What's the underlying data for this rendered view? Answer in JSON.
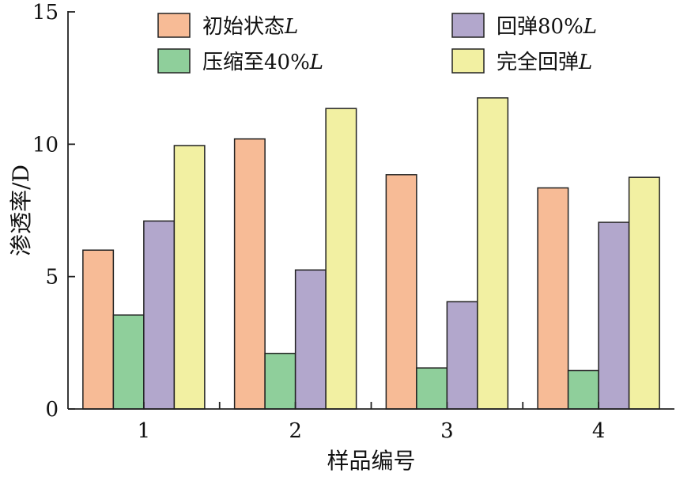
{
  "chart_data": {
    "type": "bar",
    "categories": [
      "1",
      "2",
      "3",
      "4"
    ],
    "series": [
      {
        "name": "初始状态L",
        "label_main": "初始状态",
        "label_italic": "L",
        "color": "#f7bb96",
        "values": [
          6.0,
          10.2,
          8.85,
          8.35
        ]
      },
      {
        "name": "压缩至40%L",
        "label_main": "压缩至40%",
        "label_italic": "L",
        "color": "#8fcf9b",
        "values": [
          3.55,
          2.1,
          1.55,
          1.45
        ]
      },
      {
        "name": "回弹80%L",
        "label_main": "回弹80%",
        "label_italic": "L",
        "color": "#b2a7cc",
        "values": [
          7.1,
          5.25,
          4.05,
          7.05
        ]
      },
      {
        "name": "完全回弹L",
        "label_main": "完全回弹",
        "label_italic": "L",
        "color": "#f2f0a2",
        "values": [
          9.95,
          11.35,
          11.75,
          8.75
        ]
      }
    ],
    "xlabel": "样品编号",
    "ylabel": "渗透率/D",
    "ylim": [
      0,
      15
    ],
    "yticks": [
      "0",
      "5",
      "10",
      "15"
    ],
    "grid": false,
    "legend_position": "top"
  }
}
